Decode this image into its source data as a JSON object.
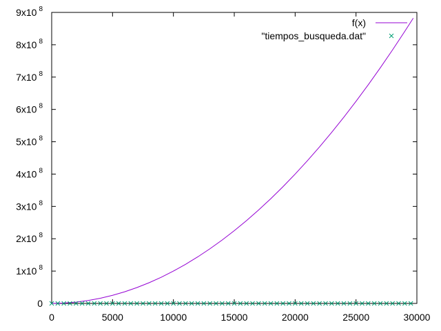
{
  "chart_data": {
    "type": "line",
    "title": "",
    "xlabel": "",
    "ylabel": "",
    "xlim": [
      0,
      30000
    ],
    "ylim": [
      0,
      900000000
    ],
    "grid": false,
    "legend_position": "top-right",
    "x_ticks": [
      {
        "value": 0,
        "label": "0"
      },
      {
        "value": 5000,
        "label": "5000"
      },
      {
        "value": 10000,
        "label": "10000"
      },
      {
        "value": 15000,
        "label": "15000"
      },
      {
        "value": 20000,
        "label": "20000"
      },
      {
        "value": 25000,
        "label": "25000"
      },
      {
        "value": 30000,
        "label": "30000"
      }
    ],
    "y_ticks": [
      {
        "value": 0,
        "mantissa": "0",
        "exponent": ""
      },
      {
        "value": 100000000,
        "mantissa": "1x10",
        "exponent": "8"
      },
      {
        "value": 200000000,
        "mantissa": "2x10",
        "exponent": "8"
      },
      {
        "value": 300000000,
        "mantissa": "3x10",
        "exponent": "8"
      },
      {
        "value": 400000000,
        "mantissa": "4x10",
        "exponent": "8"
      },
      {
        "value": 500000000,
        "mantissa": "5x10",
        "exponent": "8"
      },
      {
        "value": 600000000,
        "mantissa": "6x10",
        "exponent": "8"
      },
      {
        "value": 700000000,
        "mantissa": "7x10",
        "exponent": "8"
      },
      {
        "value": 800000000,
        "mantissa": "8x10",
        "exponent": "8"
      },
      {
        "value": 900000000,
        "mantissa": "9x10",
        "exponent": "8"
      }
    ],
    "series": [
      {
        "name": "f(x)",
        "style": "line",
        "color": "#9400d3",
        "x": [
          0,
          1000,
          2000,
          3000,
          4000,
          5000,
          6000,
          7000,
          8000,
          9000,
          10000,
          11000,
          12000,
          13000,
          14000,
          15000,
          16000,
          17000,
          18000,
          19000,
          20000,
          21000,
          22000,
          23000,
          24000,
          25000,
          26000,
          27000,
          28000,
          29000,
          29700
        ],
        "y": [
          0,
          1000000,
          4000000,
          9000000,
          16000000,
          25000000,
          36000000,
          49000000,
          64000000,
          81000000,
          100000000,
          121000000,
          144000000,
          169000000,
          196000000,
          225000000,
          256000000,
          289000000,
          324000000,
          361000000,
          400000000,
          441000000,
          484000000,
          529000000,
          576000000,
          625000000,
          676000000,
          729000000,
          784000000,
          841000000,
          882090000
        ]
      },
      {
        "name": "\"tiempos_busqueda.dat\"",
        "style": "points",
        "marker": "x",
        "color": "#009e73",
        "x": [
          0,
          500,
          1000,
          1500,
          2000,
          2500,
          3000,
          3500,
          4000,
          4500,
          5000,
          5500,
          6000,
          6500,
          7000,
          7500,
          8000,
          8500,
          9000,
          9500,
          10000,
          10500,
          11000,
          11500,
          12000,
          12500,
          13000,
          13500,
          14000,
          14500,
          15000,
          15500,
          16000,
          16500,
          17000,
          17500,
          18000,
          18500,
          19000,
          19500,
          20000,
          20500,
          21000,
          21500,
          22000,
          22500,
          23000,
          23500,
          24000,
          24500,
          25000,
          25500,
          26000,
          26500,
          27000,
          27500,
          28000,
          28500,
          29000,
          29500
        ],
        "y": [
          0,
          0,
          0,
          0,
          0,
          0,
          0,
          0,
          0,
          0,
          0,
          0,
          0,
          0,
          0,
          0,
          0,
          0,
          0,
          0,
          0,
          0,
          0,
          0,
          0,
          0,
          0,
          0,
          0,
          0,
          0,
          0,
          0,
          0,
          0,
          0,
          0,
          0,
          0,
          0,
          0,
          0,
          0,
          0,
          0,
          0,
          0,
          0,
          0,
          0,
          0,
          0,
          0,
          0,
          0,
          0,
          0,
          0,
          0,
          0
        ]
      }
    ]
  }
}
